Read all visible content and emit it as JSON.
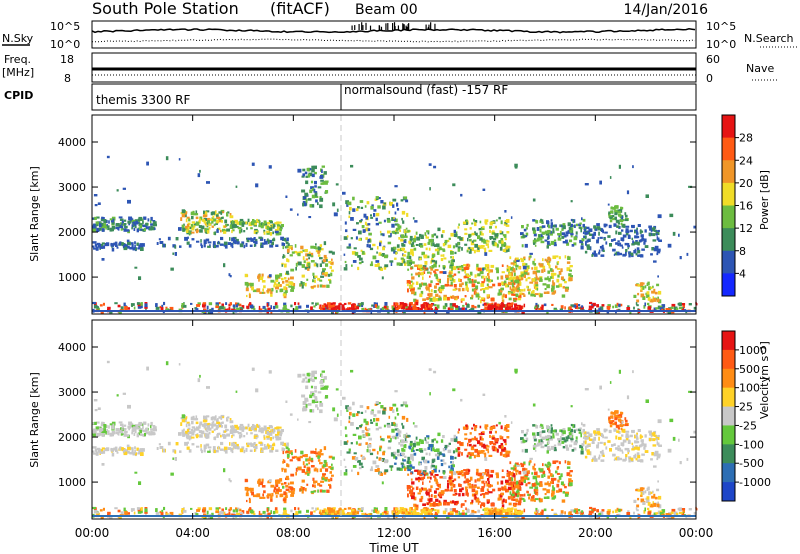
{
  "header": {
    "station": "South Pole Station",
    "mode": "(fitACF)",
    "beam": "Beam 00",
    "date": "14/Jan/2016"
  },
  "strip_plots": {
    "nsky": {
      "label": "N.Sky",
      "ticks": [
        "10^5",
        "10^0"
      ]
    },
    "nsearch": {
      "label": "N.Search",
      "ticks": [
        "10^5",
        "10^0"
      ]
    },
    "freq": {
      "label_line1": "Freq.",
      "label_line2": "[MHz]",
      "ticks": [
        "18",
        "8"
      ]
    },
    "nave": {
      "label": "Nave",
      "ticks": [
        "60",
        "0"
      ]
    },
    "cpid": {
      "label": "CPID",
      "left_text": "themis 3300 RF",
      "right_text": "normalsound (fast) -157 RF"
    }
  },
  "chart_data": [
    {
      "type": "heatmap",
      "name": "power",
      "ylabel": "Slant Range [km]",
      "xlabel": "",
      "y_ticks": [
        1000,
        2000,
        3000,
        4000
      ],
      "ylim": [
        180,
        4600
      ],
      "xlim_hours": [
        0,
        24
      ],
      "colorbar": {
        "title": "Power [dB]",
        "ticks": [
          "4",
          "8",
          "12",
          "16",
          "20",
          "24",
          "28"
        ],
        "colors": [
          "#1428ff",
          "#2d55b4",
          "#3c8c5a",
          "#6cbc40",
          "#f0dc28",
          "#f09628",
          "#ff5a14",
          "#e61414"
        ]
      }
    },
    {
      "type": "heatmap",
      "name": "velocity",
      "ylabel": "Slant Range [km]",
      "xlabel": "Time UT",
      "y_ticks": [
        1000,
        2000,
        3000,
        4000
      ],
      "ylim": [
        180,
        4600
      ],
      "xlim_hours": [
        0,
        24
      ],
      "colorbar": {
        "title": "Velocity",
        "unit": "[m s⁻¹]",
        "ticks": [
          "1000",
          "500",
          "100",
          "25",
          "-25",
          "-100",
          "-500",
          "-1000"
        ],
        "colors": [
          "#1e46c8",
          "#2d6eb4",
          "#3c8c5a",
          "#64c83c",
          "#c8c8c8",
          "#ffd228",
          "#ff8c14",
          "#ff5a14",
          "#e61414"
        ]
      }
    }
  ],
  "time_axis": {
    "ticks": [
      "00:00",
      "04:00",
      "08:00",
      "12:00",
      "16:00",
      "20:00",
      "00:00"
    ],
    "label": "Time UT"
  }
}
